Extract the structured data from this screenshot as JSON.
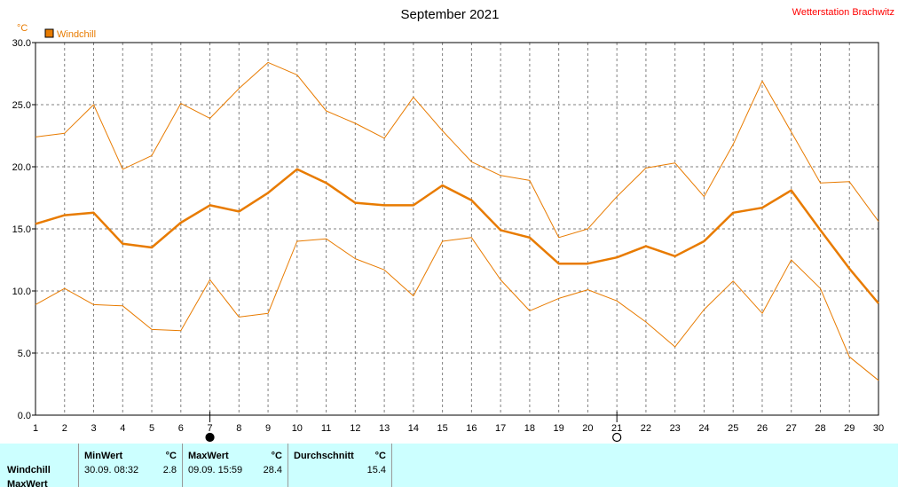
{
  "chart_data": {
    "type": "line",
    "title": "September 2021",
    "station": "Wetterstation Brachwitz",
    "unit_label": "°C",
    "legend": [
      "Windchill"
    ],
    "x": [
      1,
      2,
      3,
      4,
      5,
      6,
      7,
      8,
      9,
      10,
      11,
      12,
      13,
      14,
      15,
      16,
      17,
      18,
      19,
      20,
      21,
      22,
      23,
      24,
      25,
      26,
      27,
      28,
      29,
      30
    ],
    "xlim": [
      1,
      30
    ],
    "ylim": [
      0,
      30
    ],
    "yticks": [
      "0.0",
      "5.0",
      "10.0",
      "15.0",
      "20.0",
      "25.0",
      "30.0"
    ],
    "grid": true,
    "legend_placement": "top-left",
    "series": [
      {
        "name": "Windchill",
        "role": "max",
        "values": [
          22.4,
          22.7,
          25.0,
          19.8,
          20.9,
          25.1,
          23.9,
          26.3,
          28.4,
          27.4,
          24.5,
          23.5,
          22.3,
          25.6,
          22.9,
          20.4,
          19.3,
          18.9,
          14.3,
          15.0,
          17.6,
          19.9,
          20.3,
          17.6,
          21.8,
          26.9,
          22.8,
          18.7,
          18.8,
          15.6
        ]
      },
      {
        "name": "Windchill",
        "role": "mean",
        "values": [
          15.4,
          16.1,
          16.3,
          13.8,
          13.5,
          15.5,
          16.9,
          16.4,
          17.9,
          19.8,
          18.7,
          17.1,
          16.9,
          16.9,
          18.5,
          17.3,
          14.9,
          14.3,
          12.2,
          12.2,
          12.7,
          13.6,
          12.8,
          14.0,
          16.3,
          16.7,
          18.1,
          14.9,
          11.8,
          9.0
        ]
      },
      {
        "name": "Windchill",
        "role": "min",
        "values": [
          8.9,
          10.2,
          8.9,
          8.8,
          6.9,
          6.8,
          10.9,
          7.9,
          8.2,
          14.0,
          14.2,
          12.6,
          11.7,
          9.6,
          14.0,
          14.3,
          10.9,
          8.4,
          9.4,
          10.1,
          9.2,
          7.5,
          5.5,
          8.5,
          10.8,
          8.2,
          12.5,
          10.2,
          4.7,
          2.8
        ]
      }
    ],
    "markers": [
      {
        "day": 7,
        "symbol": "full-moon"
      },
      {
        "day": 21,
        "symbol": "new-moon"
      }
    ],
    "colors": {
      "line": "#e87b00",
      "grid": "#808080"
    }
  },
  "summary": {
    "row_labels": [
      "Windchill",
      "MaxWert"
    ],
    "columns": [
      {
        "header": "MinWert",
        "unit": "°C",
        "datetime": "30.09.  08:32",
        "value": "2.8"
      },
      {
        "header": "MaxWert",
        "unit": "°C",
        "datetime": "09.09.  15:59",
        "value": "28.4"
      },
      {
        "header": "Durchschnitt",
        "unit": "°C",
        "datetime": "",
        "value": "15.4"
      }
    ]
  }
}
